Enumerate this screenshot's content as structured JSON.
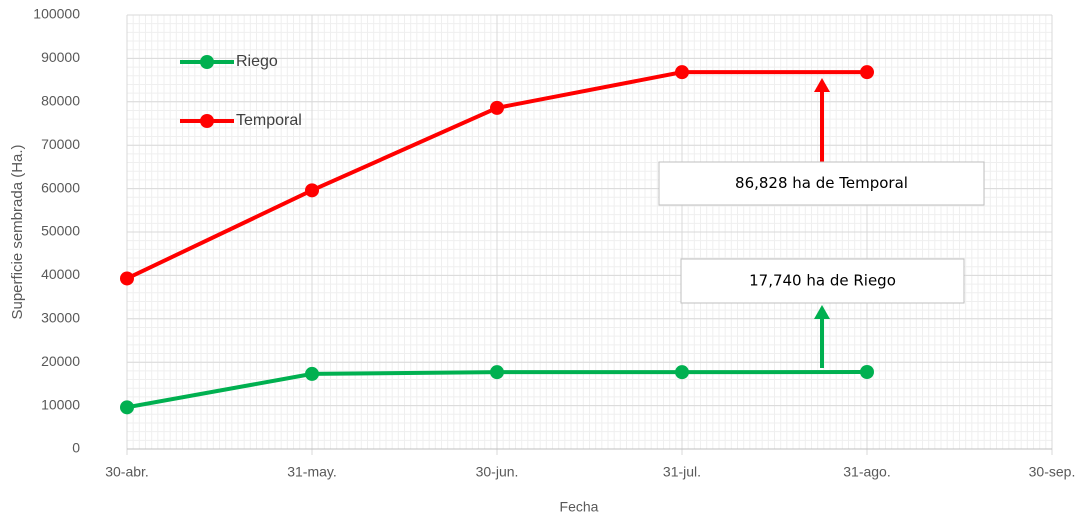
{
  "chart_data": {
    "type": "line",
    "x_label": "Fecha",
    "y_label": "Superficie sembrada (Ha.)",
    "categories": [
      "30-abr.",
      "31-may.",
      "30-jun.",
      "31-jul.",
      "31-ago.",
      "30-sep."
    ],
    "series": [
      {
        "name": "Riego",
        "color": "#00b050",
        "values": [
          9600,
          17300,
          17700,
          17700,
          17740,
          null
        ]
      },
      {
        "name": "Temporal",
        "color": "#ff0000",
        "values": [
          39300,
          59600,
          78600,
          86828,
          86828,
          null
        ]
      }
    ],
    "annotations": [
      "86,828 ha de Temporal",
      "17,740 ha de Riego"
    ],
    "ylim": [
      0,
      100000
    ],
    "yticks": [
      0,
      10000,
      20000,
      30000,
      40000,
      50000,
      60000,
      70000,
      80000,
      90000,
      100000
    ],
    "grid": true,
    "legend": "upper left"
  }
}
